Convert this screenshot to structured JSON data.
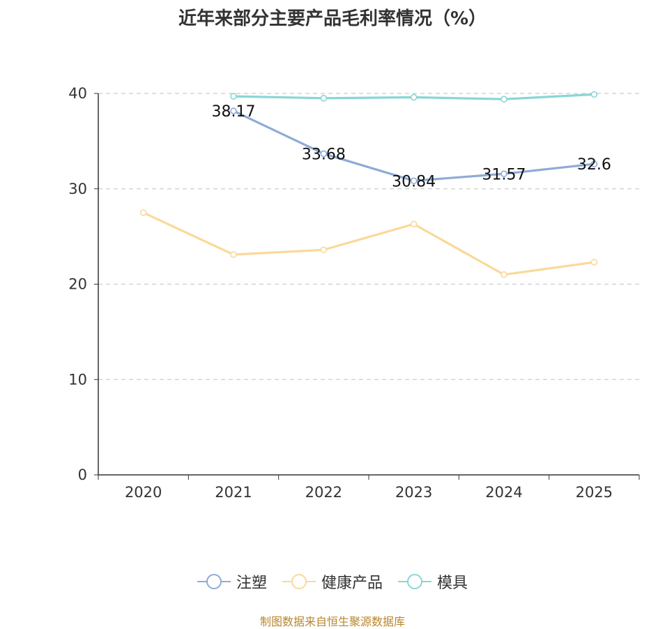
{
  "chart_data": {
    "type": "line",
    "title": "近年来部分主要产品毛利率情况（%）",
    "categories": [
      "2020",
      "2021",
      "2022",
      "2023",
      "2024",
      "2025"
    ],
    "ylim": [
      0,
      40
    ],
    "yticks": [
      0,
      10,
      20,
      30,
      40
    ],
    "grid": true,
    "legend_position": "bottom",
    "series": [
      {
        "name": "注塑",
        "color": "#8eabd6",
        "values": [
          null,
          38.17,
          33.68,
          30.84,
          31.57,
          32.6
        ],
        "labels": [
          "",
          "38.17",
          "33.68",
          "30.84",
          "31.57",
          "32.6"
        ]
      },
      {
        "name": "健康产品",
        "color": "#fad999",
        "values": [
          27.5,
          23.1,
          23.6,
          26.3,
          21.0,
          22.3
        ],
        "labels": [
          "",
          "",
          "",
          "",
          "",
          ""
        ]
      },
      {
        "name": "模具",
        "color": "#88d6d6",
        "values": [
          null,
          39.7,
          39.5,
          39.6,
          39.4,
          39.9
        ],
        "labels": [
          "",
          "",
          "",
          "",
          "",
          ""
        ]
      }
    ]
  },
  "source": "制图数据来自恒生聚源数据库"
}
